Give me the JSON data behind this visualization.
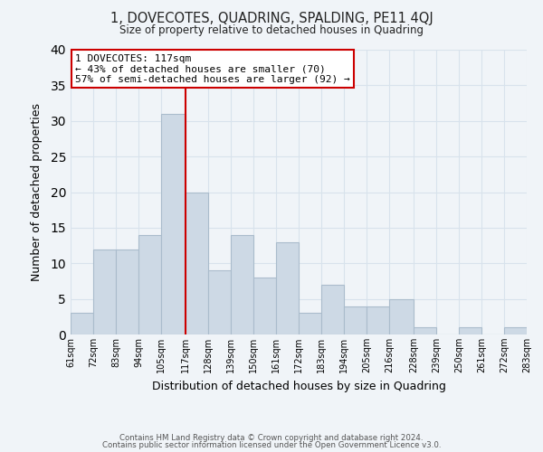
{
  "title": "1, DOVECOTES, QUADRING, SPALDING, PE11 4QJ",
  "subtitle": "Size of property relative to detached houses in Quadring",
  "xlabel": "Distribution of detached houses by size in Quadring",
  "ylabel": "Number of detached properties",
  "bar_color": "#cdd9e5",
  "bar_edge_color": "#aabccc",
  "vline_x": 117,
  "vline_color": "#cc0000",
  "annotation_title": "1 DOVECOTES: 117sqm",
  "annotation_line1": "← 43% of detached houses are smaller (70)",
  "annotation_line2": "57% of semi-detached houses are larger (92) →",
  "annotation_box_color": "#ffffff",
  "annotation_box_edge": "#cc0000",
  "bins": [
    61,
    72,
    83,
    94,
    105,
    117,
    128,
    139,
    150,
    161,
    172,
    183,
    194,
    205,
    216,
    228,
    239,
    250,
    261,
    272,
    283
  ],
  "counts": [
    3,
    12,
    12,
    14,
    31,
    20,
    9,
    14,
    8,
    13,
    3,
    7,
    4,
    4,
    5,
    1,
    0,
    1,
    0,
    1
  ],
  "tick_labels": [
    "61sqm",
    "72sqm",
    "83sqm",
    "94sqm",
    "105sqm",
    "117sqm",
    "128sqm",
    "139sqm",
    "150sqm",
    "161sqm",
    "172sqm",
    "183sqm",
    "194sqm",
    "205sqm",
    "216sqm",
    "228sqm",
    "239sqm",
    "250sqm",
    "261sqm",
    "272sqm",
    "283sqm"
  ],
  "ylim": [
    0,
    40
  ],
  "yticks": [
    0,
    5,
    10,
    15,
    20,
    25,
    30,
    35,
    40
  ],
  "footer1": "Contains HM Land Registry data © Crown copyright and database right 2024.",
  "footer2": "Contains public sector information licensed under the Open Government Licence v3.0.",
  "background_color": "#f0f4f8",
  "grid_color": "#d8e2ec"
}
